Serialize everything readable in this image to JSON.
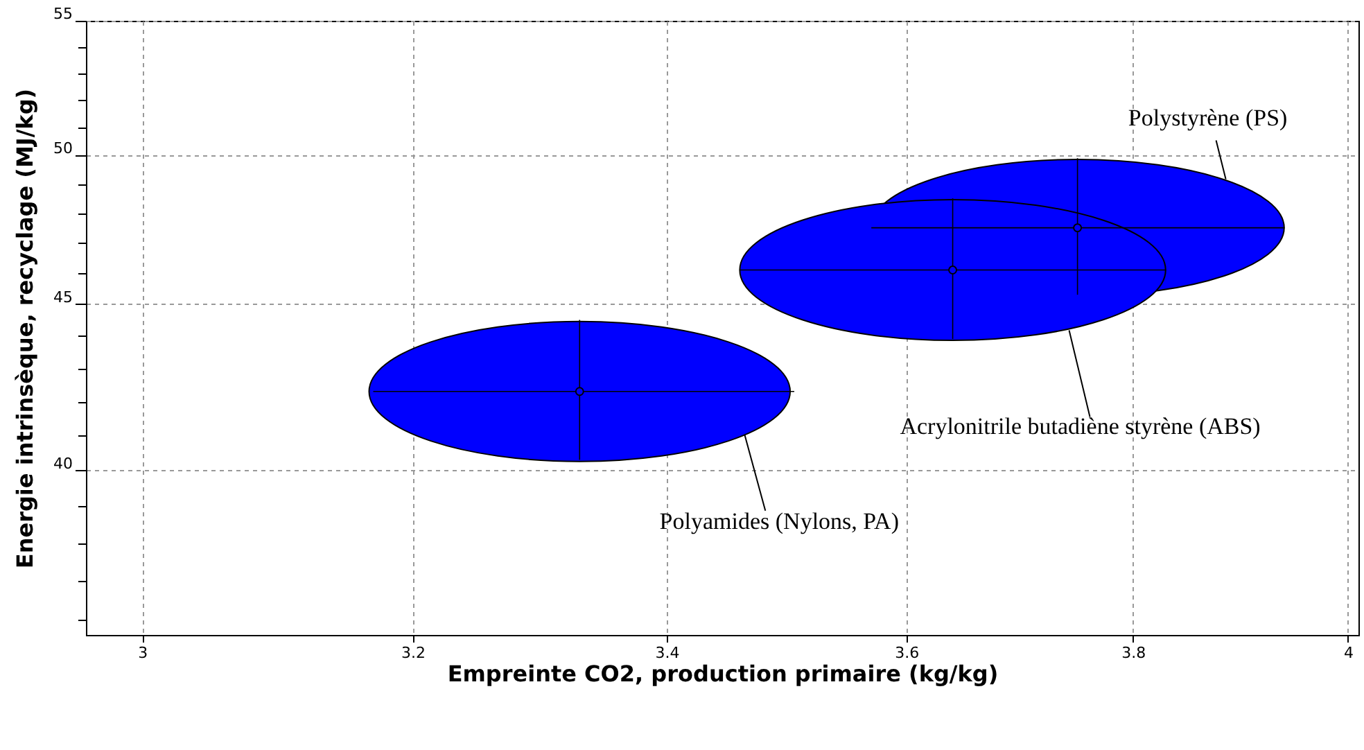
{
  "chart_data": {
    "type": "scatter",
    "xlabel": "Empreinte CO2, production primaire (kg/kg)",
    "ylabel": "Energie intrinsèque, recyclage (MJ/kg)",
    "log": "xy",
    "grid": true,
    "xlim": [
      2.96,
      4.01
    ],
    "ylim": [
      35.6,
      55
    ],
    "xticks": [
      3,
      3.2,
      3.4,
      3.6,
      3.8,
      4
    ],
    "yticks": [
      {
        "value": 36,
        "label": null
      },
      {
        "value": 37,
        "label": null
      },
      {
        "value": 38,
        "label": null
      },
      {
        "value": 39,
        "label": null
      },
      40,
      {
        "value": 41,
        "label": null
      },
      {
        "value": 42,
        "label": null
      },
      {
        "value": 43,
        "label": null
      },
      {
        "value": 44,
        "label": null
      },
      45,
      {
        "value": 46,
        "label": null
      },
      {
        "value": 47,
        "label": null
      },
      {
        "value": 48,
        "label": null
      },
      {
        "value": 49,
        "label": null
      },
      50,
      {
        "value": 51,
        "label": null
      },
      {
        "value": 52,
        "label": null
      },
      {
        "value": 53,
        "label": null
      },
      {
        "value": 54,
        "label": null
      },
      55
    ],
    "annotations": [
      "Polystyrène (PS)",
      "Acrylonitrile butadiène styrène (ABS)",
      "Polyamides (Nylons, PA)"
    ],
    "series": [
      {
        "color": "#0000ff",
        "x": [
          3.75
        ],
        "values": [
          47.5
        ],
        "xerrors": [
          [
            3.57,
            3.94
          ]
        ],
        "errors": [
          [
            45.3,
            49.9
          ]
        ]
      },
      {
        "color": "#0000ff",
        "x": [
          3.64
        ],
        "values": [
          46.1
        ],
        "xerrors": [
          [
            3.46,
            3.83
          ]
        ],
        "errors": [
          [
            43.9,
            48.5
          ]
        ]
      },
      {
        "color": "#0000ff",
        "x": [
          3.33
        ],
        "values": [
          42.3
        ],
        "xerrors": [
          [
            3.17,
            3.505
          ]
        ],
        "errors": [
          [
            40.3,
            44.5
          ]
        ]
      }
    ]
  }
}
